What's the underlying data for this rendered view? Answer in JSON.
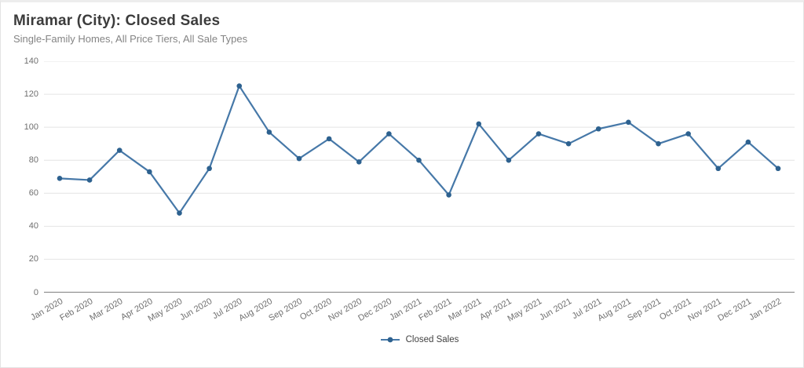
{
  "card": {
    "title": "Miramar (City): Closed Sales",
    "subtitle": "Single-Family Homes, All Price Tiers, All Sale Types"
  },
  "legend": {
    "label": "Closed Sales"
  },
  "colors": {
    "line": "#4678a8",
    "marker": "#2d618f",
    "grid": "#e4e4e4",
    "axis": "#8c8c8c",
    "tick_label": "#6f6f6f"
  },
  "chart_data": {
    "type": "line",
    "title": "Miramar (City): Closed Sales",
    "subtitle": "Single-Family Homes, All Price Tiers, All Sale Types",
    "categories": [
      "Jan 2020",
      "Feb 2020",
      "Mar 2020",
      "Apr 2020",
      "May 2020",
      "Jun 2020",
      "Jul 2020",
      "Aug 2020",
      "Sep 2020",
      "Oct 2020",
      "Nov 2020",
      "Dec 2020",
      "Jan 2021",
      "Feb 2021",
      "Mar 2021",
      "Apr 2021",
      "May 2021",
      "Jun 2021",
      "Jul 2021",
      "Aug 2021",
      "Sep 2021",
      "Oct 2021",
      "Nov 2021",
      "Dec 2021",
      "Jan 2022"
    ],
    "series": [
      {
        "name": "Closed Sales",
        "values": [
          69,
          68,
          86,
          73,
          48,
          75,
          125,
          97,
          81,
          93,
          79,
          96,
          80,
          59,
          102,
          80,
          96,
          90,
          99,
          103,
          90,
          96,
          75,
          91,
          75
        ]
      }
    ],
    "ylim": [
      0,
      140
    ],
    "ytick_step": 20,
    "grid": "horizontal",
    "legend_position": "bottom-center",
    "marker": "circle"
  }
}
